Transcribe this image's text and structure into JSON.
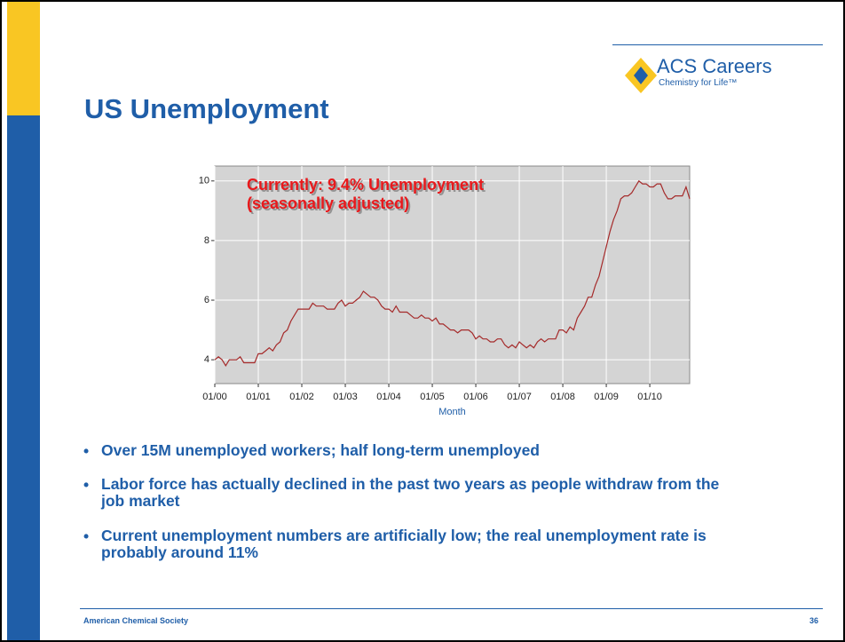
{
  "title": "US Unemployment",
  "logo": {
    "brand": "ACS Careers",
    "tagline": "Chemistry for Life™"
  },
  "bullets": [
    "Over 15M unemployed workers; half long-term unemployed",
    "Labor force has actually declined in the past two years as people withdraw from the job market",
    "Current unemployment numbers are artificially low; the real unemployment rate is probably around 11%"
  ],
  "footer": {
    "left": "American Chemical Society",
    "page": "36"
  },
  "chart_data": {
    "type": "line",
    "annotations": [
      "Currently: 9.4% Unemployment",
      "(seasonally adjusted)"
    ],
    "x_label": "Month",
    "categories": [
      "01/00",
      null,
      null,
      null,
      null,
      null,
      null,
      null,
      null,
      null,
      null,
      null,
      "01/01",
      null,
      null,
      null,
      null,
      null,
      null,
      null,
      null,
      null,
      null,
      null,
      "01/02",
      null,
      null,
      null,
      null,
      null,
      null,
      null,
      null,
      null,
      null,
      null,
      "01/03",
      null,
      null,
      null,
      null,
      null,
      null,
      null,
      null,
      null,
      null,
      null,
      "01/04",
      null,
      null,
      null,
      null,
      null,
      null,
      null,
      null,
      null,
      null,
      null,
      "01/05",
      null,
      null,
      null,
      null,
      null,
      null,
      null,
      null,
      null,
      null,
      null,
      "01/06",
      null,
      null,
      null,
      null,
      null,
      null,
      null,
      null,
      null,
      null,
      null,
      "01/07",
      null,
      null,
      null,
      null,
      null,
      null,
      null,
      null,
      null,
      null,
      null,
      "01/08",
      null,
      null,
      null,
      null,
      null,
      null,
      null,
      null,
      null,
      null,
      null,
      "01/09",
      null,
      null,
      null,
      null,
      null,
      null,
      null,
      null,
      null,
      null,
      null,
      "01/10",
      null,
      null,
      null,
      null,
      null,
      null,
      null,
      null,
      null,
      null,
      null
    ],
    "series": [
      {
        "color": "#a52a2a",
        "values": [
          4.0,
          4.1,
          4.0,
          3.8,
          4.0,
          4.0,
          4.0,
          4.1,
          3.9,
          3.9,
          3.9,
          3.9,
          4.2,
          4.2,
          4.3,
          4.4,
          4.3,
          4.5,
          4.6,
          4.9,
          5.0,
          5.3,
          5.5,
          5.7,
          5.7,
          5.7,
          5.7,
          5.9,
          5.8,
          5.8,
          5.8,
          5.7,
          5.7,
          5.7,
          5.9,
          6.0,
          5.8,
          5.9,
          5.9,
          6.0,
          6.1,
          6.3,
          6.2,
          6.1,
          6.1,
          6.0,
          5.8,
          5.7,
          5.7,
          5.6,
          5.8,
          5.6,
          5.6,
          5.6,
          5.5,
          5.4,
          5.4,
          5.5,
          5.4,
          5.4,
          5.3,
          5.4,
          5.2,
          5.2,
          5.1,
          5.0,
          5.0,
          4.9,
          5.0,
          5.0,
          5.0,
          4.9,
          4.7,
          4.8,
          4.7,
          4.7,
          4.6,
          4.6,
          4.7,
          4.7,
          4.5,
          4.4,
          4.5,
          4.4,
          4.6,
          4.5,
          4.4,
          4.5,
          4.4,
          4.6,
          4.7,
          4.6,
          4.7,
          4.7,
          4.7,
          5.0,
          5.0,
          4.9,
          5.1,
          5.0,
          5.4,
          5.6,
          5.8,
          6.1,
          6.1,
          6.5,
          6.8,
          7.3,
          7.8,
          8.3,
          8.7,
          9.0,
          9.4,
          9.5,
          9.5,
          9.6,
          9.8,
          10.0,
          9.9,
          9.9,
          9.8,
          9.8,
          9.9,
          9.9,
          9.6,
          9.4,
          9.4,
          9.5,
          9.5,
          9.5,
          9.8,
          9.4
        ]
      }
    ],
    "ylim": [
      3.2,
      10.5
    ],
    "yticks": [
      4,
      6,
      8,
      10
    ],
    "grid": true,
    "background": "#d4d4d4"
  }
}
